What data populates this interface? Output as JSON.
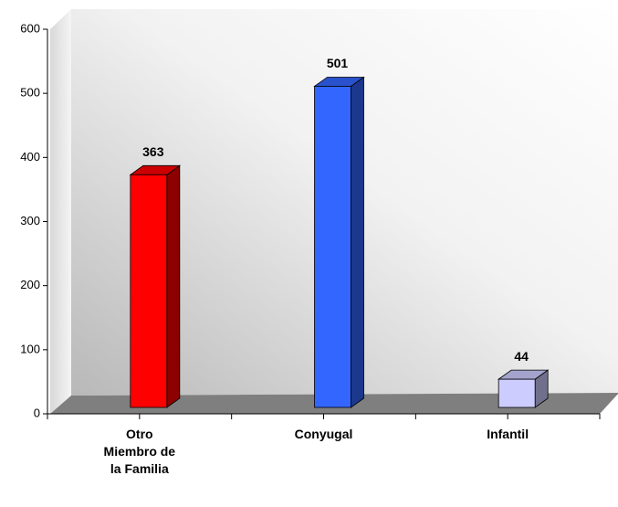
{
  "chart_data": {
    "type": "bar3d",
    "categories": [
      "Otro Miembro de la Familia",
      "Conyugal",
      "Infantil"
    ],
    "values": [
      363,
      501,
      44
    ],
    "colors": [
      "#ff0000",
      "#3366ff",
      "#ccccff"
    ],
    "ylim": [
      0,
      600
    ],
    "yticks": [
      0,
      100,
      200,
      300,
      400,
      500,
      600
    ]
  }
}
